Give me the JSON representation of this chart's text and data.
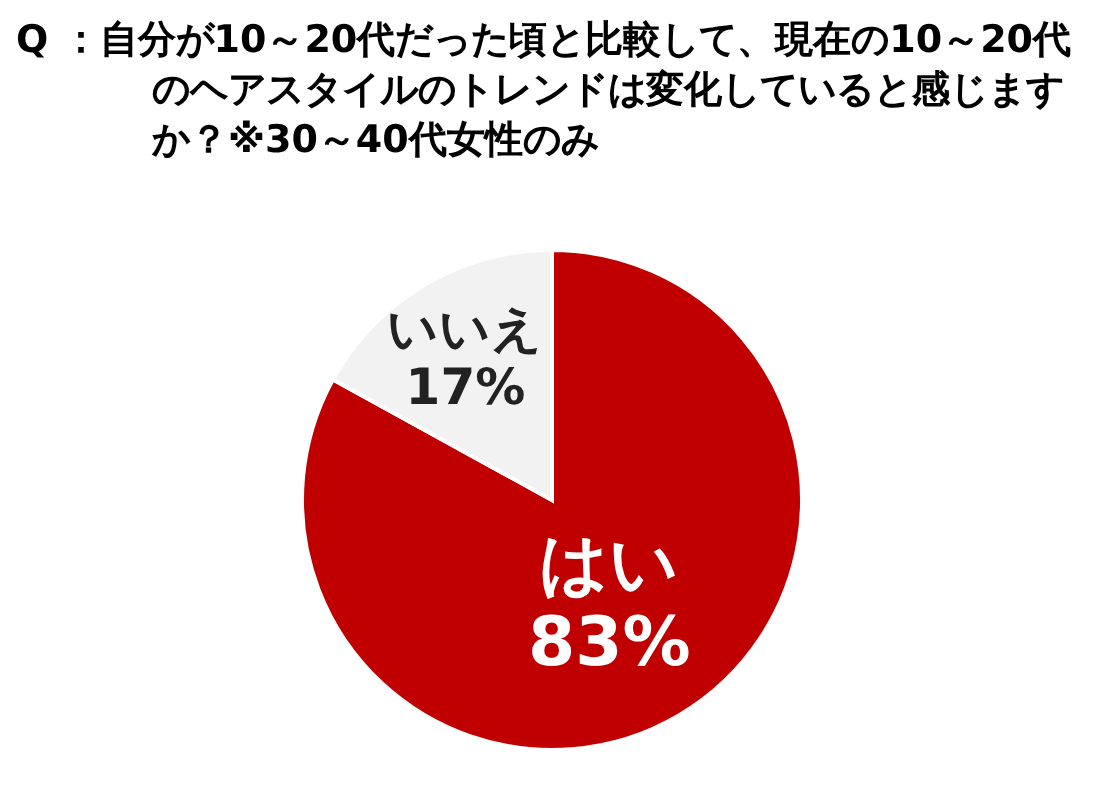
{
  "chart_data": {
    "type": "pie",
    "title": "Q ：自分が10～20代だった頃と比較して、現在の10～20代のヘアスタイルのトレンドは変化していると感じますか？※30～40代女性のみ",
    "categories": [
      "はい",
      "いいえ"
    ],
    "values": [
      83,
      17
    ],
    "value_labels": [
      "83%",
      "17%"
    ],
    "colors": [
      "#c00000",
      "#f2f2f2"
    ]
  }
}
